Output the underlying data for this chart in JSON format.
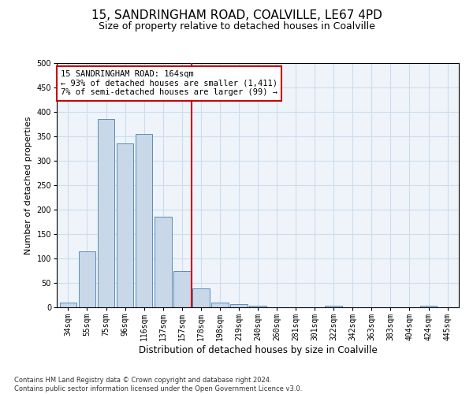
{
  "title1": "15, SANDRINGHAM ROAD, COALVILLE, LE67 4PD",
  "title2": "Size of property relative to detached houses in Coalville",
  "xlabel": "Distribution of detached houses by size in Coalville",
  "ylabel": "Number of detached properties",
  "footer1": "Contains HM Land Registry data © Crown copyright and database right 2024.",
  "footer2": "Contains public sector information licensed under the Open Government Licence v3.0.",
  "categories": [
    "34sqm",
    "55sqm",
    "75sqm",
    "96sqm",
    "116sqm",
    "137sqm",
    "157sqm",
    "178sqm",
    "198sqm",
    "219sqm",
    "240sqm",
    "260sqm",
    "281sqm",
    "301sqm",
    "322sqm",
    "342sqm",
    "363sqm",
    "383sqm",
    "404sqm",
    "424sqm",
    "445sqm"
  ],
  "bar_heights": [
    10,
    115,
    385,
    335,
    355,
    185,
    75,
    38,
    10,
    6,
    3,
    0,
    0,
    0,
    4,
    0,
    0,
    0,
    0,
    3,
    0
  ],
  "bar_color": "#c8d8e8",
  "bar_edge_color": "#5b8db8",
  "vline_color": "#cc0000",
  "vline_pos": 6.5,
  "annotation_text": "15 SANDRINGHAM ROAD: 164sqm\n← 93% of detached houses are smaller (1,411)\n7% of semi-detached houses are larger (99) →",
  "annotation_box_color": "#ffffff",
  "annotation_box_edge_color": "#cc0000",
  "ylim": [
    0,
    500
  ],
  "yticks": [
    0,
    50,
    100,
    150,
    200,
    250,
    300,
    350,
    400,
    450,
    500
  ],
  "grid_color": "#ccddee",
  "background_color": "#eef4fa",
  "title1_fontsize": 11,
  "title2_fontsize": 9,
  "xlabel_fontsize": 8.5,
  "ylabel_fontsize": 8,
  "tick_fontsize": 7,
  "annotation_fontsize": 7.5,
  "footer_fontsize": 6
}
